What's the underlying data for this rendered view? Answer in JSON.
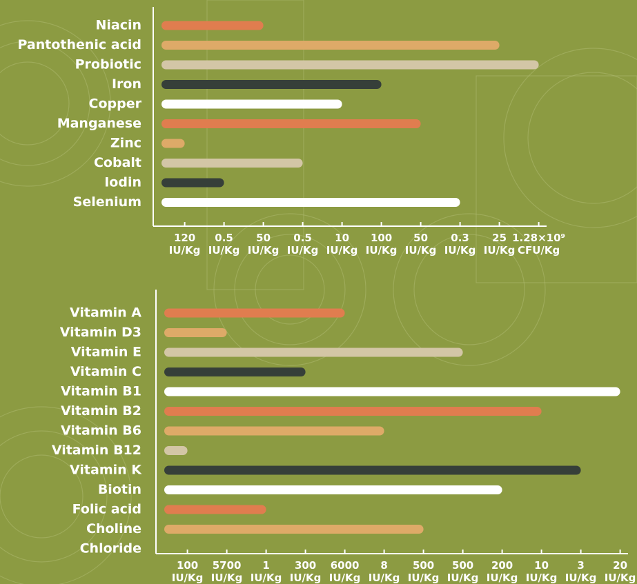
{
  "chart_data": [
    {
      "type": "bar",
      "orientation": "horizontal",
      "categories": [
        "Niacin",
        "Pantothenic acid",
        "Probiotic",
        "Iron",
        "Copper",
        "Manganese",
        "Zinc",
        "Cobalt",
        "Iodin",
        "Selenium"
      ],
      "values": [
        3,
        9,
        10,
        6,
        5,
        7,
        1,
        4,
        2,
        8
      ],
      "colors": [
        "#e07d4f",
        "#deaa68",
        "#d3c6a6",
        "#363f39",
        "#ffffff",
        "#e07d4f",
        "#deaa68",
        "#d3c6a6",
        "#363f39",
        "#ffffff"
      ],
      "xlim": [
        0.2,
        10.2
      ],
      "xticks": [
        {
          "value": 1,
          "label": "120 IU/Kg"
        },
        {
          "value": 2,
          "label": "0.5 IU/Kg"
        },
        {
          "value": 3,
          "label": "50 IU/Kg"
        },
        {
          "value": 4,
          "label": "0.5 IU/Kg"
        },
        {
          "value": 5,
          "label": "10 IU/Kg"
        },
        {
          "value": 6,
          "label": "100 IU/Kg"
        },
        {
          "value": 7,
          "label": "50 IU/Kg"
        },
        {
          "value": 8,
          "label": "0.3 IU/Kg"
        },
        {
          "value": 9,
          "label": "25 IU/Kg"
        },
        {
          "value": 10,
          "label": "1.28×10⁹ CFU/Kg"
        }
      ]
    },
    {
      "type": "bar",
      "orientation": "horizontal",
      "categories": [
        "Vitamin A",
        "Vitamin D3",
        "Vitamin E",
        "Vitamin C",
        "Vitamin B1",
        "Vitamin B2",
        "Vitamin B6",
        "Vitamin B12",
        "Vitamin K",
        "Biotin",
        "Folic acid",
        "Choline",
        "Chloride"
      ],
      "values": [
        5,
        2,
        8,
        4,
        12,
        10,
        6,
        1,
        11,
        9,
        3,
        7,
        null
      ],
      "colors": [
        "#e07d4f",
        "#deaa68",
        "#d3c6a6",
        "#363f39",
        "#ffffff",
        "#e07d4f",
        "#deaa68",
        "#d3c6a6",
        "#363f39",
        "#ffffff",
        "#e07d4f",
        "#deaa68",
        "#d3c6a6"
      ],
      "xlim": [
        0.2,
        12.2
      ],
      "xticks": [
        {
          "value": 1,
          "label": "100 IU/Kg"
        },
        {
          "value": 2,
          "label": "5700 IU/Kg"
        },
        {
          "value": 3,
          "label": "1 IU/Kg"
        },
        {
          "value": 4,
          "label": "300 IU/Kg"
        },
        {
          "value": 5,
          "label": "6000 IU/Kg"
        },
        {
          "value": 6,
          "label": "8 IU/Kg"
        },
        {
          "value": 7,
          "label": "500 IU/Kg"
        },
        {
          "value": 8,
          "label": "500 IU/Kg"
        },
        {
          "value": 9,
          "label": "200 IU/Kg"
        },
        {
          "value": 10,
          "label": "10 IU/Kg"
        },
        {
          "value": 11,
          "label": "3 IU/Kg"
        },
        {
          "value": 12,
          "label": "20 IU/Kg"
        }
      ]
    }
  ]
}
